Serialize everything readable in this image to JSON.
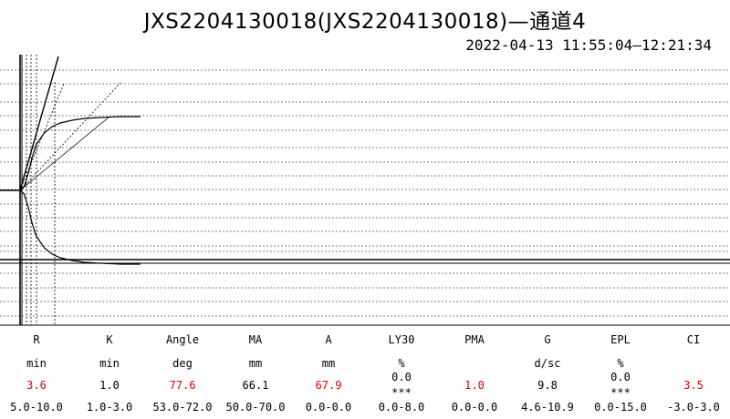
{
  "title": "JXS2204130018(JXS2204130018)—通道4",
  "time_range": "2022-04-13 11:55:04—12:21:34",
  "colors": {
    "abnormal": "#e00000",
    "normal": "#000000",
    "gridline": "#555555"
  },
  "chart_data": {
    "type": "line",
    "description_note": "",
    "series": [
      {
        "name": "",
        "key": "upper",
        "x": [
          0,
          1,
          2,
          3,
          4,
          6,
          8,
          10,
          13,
          16,
          20,
          25,
          30
        ],
        "y": [
          0,
          0.04,
          0.18,
          0.36,
          0.5,
          0.63,
          0.7,
          0.74,
          0.77,
          0.79,
          0.8,
          0.81,
          0.81
        ]
      },
      {
        "name": "",
        "key": "lower",
        "x": [
          0,
          1,
          2,
          3,
          4,
          6,
          8,
          10,
          13,
          16,
          20,
          25,
          30
        ],
        "y": [
          0,
          -0.04,
          -0.18,
          -0.36,
          -0.5,
          -0.63,
          -0.7,
          -0.74,
          -0.77,
          -0.79,
          -0.8,
          -0.81,
          -0.81
        ]
      }
    ]
  },
  "results": [
    {
      "name": "R",
      "unit": "min",
      "value": "3.6",
      "range": "5.0-10.0",
      "abnormal": true
    },
    {
      "name": "K",
      "unit": "min",
      "value": "1.0",
      "range": "1.0-3.0",
      "abnormal": false
    },
    {
      "name": "Angle",
      "unit": "deg",
      "value": "77.6",
      "range": "53.0-72.0",
      "abnormal": true
    },
    {
      "name": "MA",
      "unit": "mm",
      "value": "66.1",
      "range": "50.0-70.0",
      "abnormal": false
    },
    {
      "name": "A",
      "unit": "mm",
      "value": "67.9",
      "range": "0.0-0.0",
      "abnormal": true
    },
    {
      "name": "LY30",
      "unit": "%",
      "value": "0.0",
      "flag": "***",
      "range": "0.0-8.0",
      "abnormal": false
    },
    {
      "name": "PMA",
      "unit": "",
      "value": "1.0",
      "range": "0.0-0.0",
      "abnormal": true
    },
    {
      "name": "G",
      "unit": "d/sc",
      "value": "9.8",
      "range": "4.6-10.9",
      "abnormal": false
    },
    {
      "name": "EPL",
      "unit": "%",
      "value": "0.0",
      "flag": "***",
      "range": "0.0-15.0",
      "abnormal": false
    },
    {
      "name": "CI",
      "unit": "",
      "value": "3.5",
      "range": "-3.0-3.0",
      "abnormal": true
    }
  ]
}
